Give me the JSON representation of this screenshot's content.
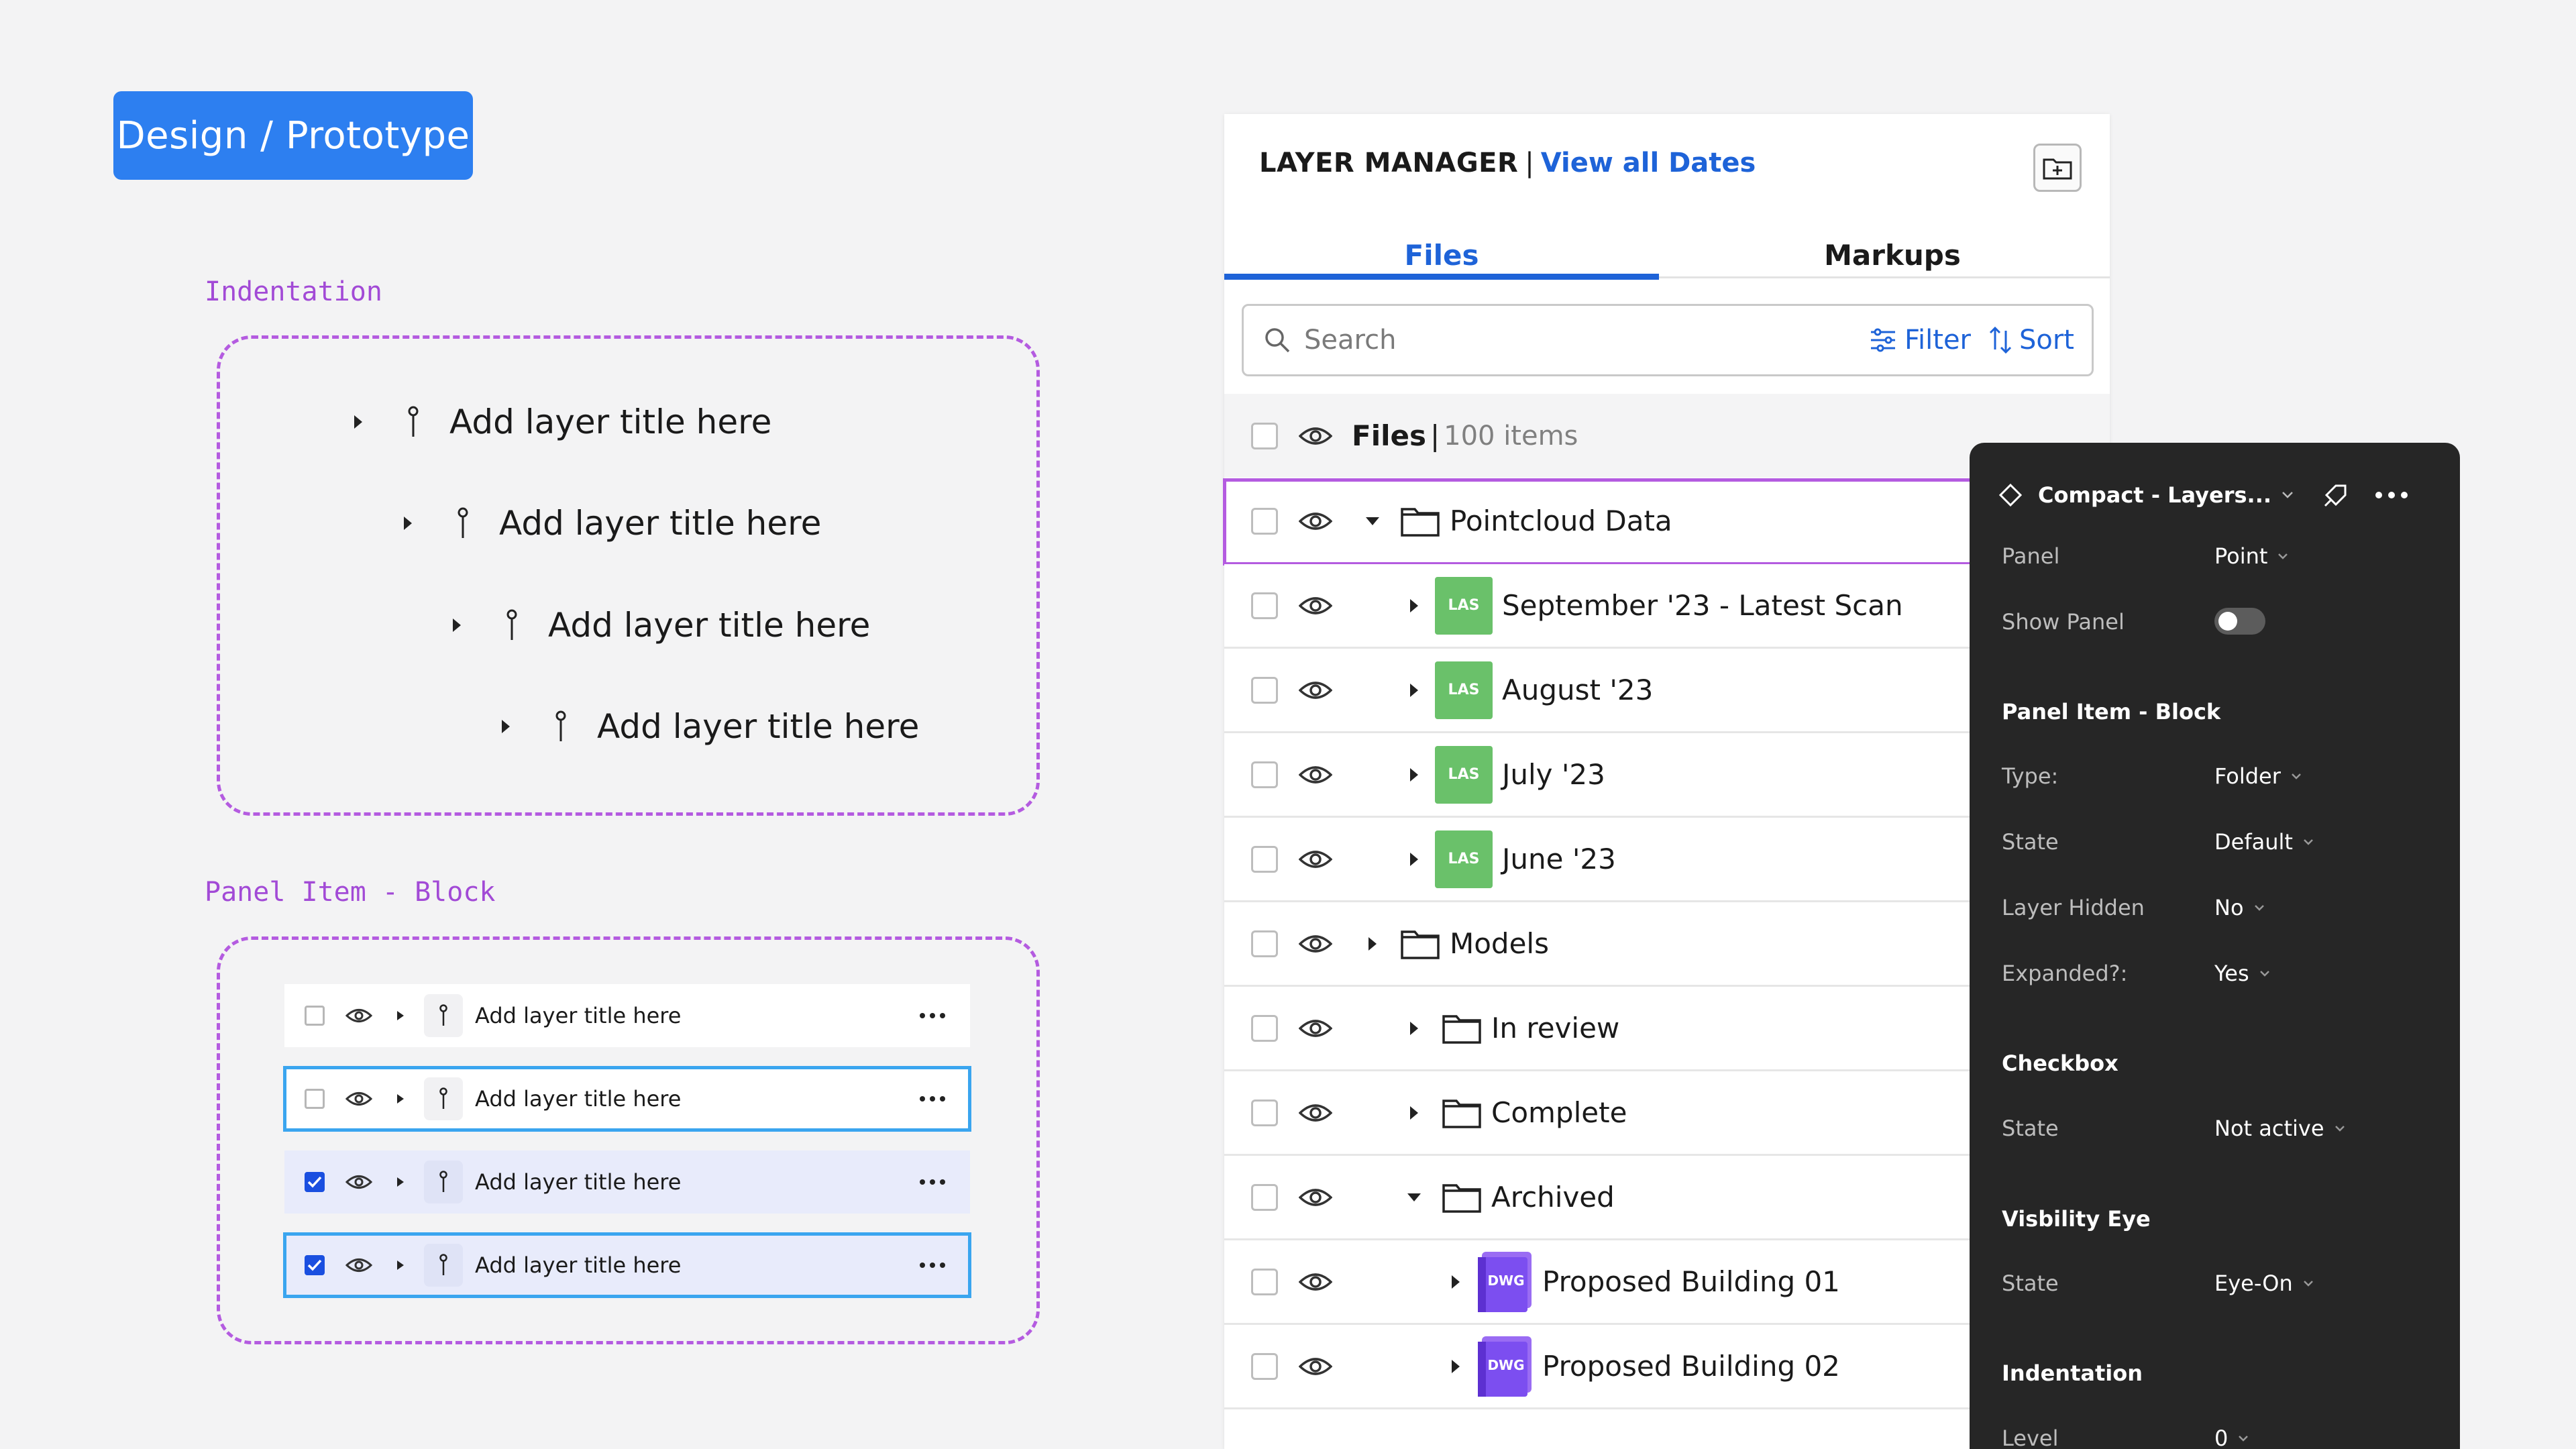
{
  "badge": {
    "label": "Design / Prototype"
  },
  "indentation": {
    "label": "Indentation",
    "rows": [
      {
        "title": "Add layer title here"
      },
      {
        "title": "Add layer title here"
      },
      {
        "title": "Add layer title here"
      },
      {
        "title": "Add layer title here"
      }
    ]
  },
  "panel_item_block": {
    "label": "Panel Item - Block",
    "rows": [
      {
        "title": "Add layer title here",
        "checked": false,
        "state": "default"
      },
      {
        "title": "Add layer title here",
        "checked": false,
        "state": "focus"
      },
      {
        "title": "Add layer title here",
        "checked": true,
        "state": "selected"
      },
      {
        "title": "Add layer title here",
        "checked": true,
        "state": "selected-focus"
      }
    ]
  },
  "layer_manager": {
    "title": "LAYER MANAGER",
    "separator": "|",
    "link": "View all Dates",
    "tabs": [
      "Files",
      "Markups"
    ],
    "active_tab": "Files",
    "search_placeholder": "Search",
    "filter_label": "Filter",
    "sort_label": "Sort",
    "files_label": "Files",
    "files_separator": "|",
    "files_count": "100 items",
    "rows": [
      {
        "title": "Pointcloud Data",
        "type": "folder",
        "level": 0,
        "expanded": true
      },
      {
        "title": "September '23 - Latest Scan",
        "type": "las",
        "level": 1,
        "expanded": false
      },
      {
        "title": "August '23",
        "type": "las",
        "level": 1,
        "expanded": false
      },
      {
        "title": "July '23",
        "type": "las",
        "level": 1,
        "expanded": false
      },
      {
        "title": "June '23",
        "type": "las",
        "level": 1,
        "expanded": false
      },
      {
        "title": "Models",
        "type": "folder",
        "level": 0,
        "expanded": false
      },
      {
        "title": "In review",
        "type": "folder",
        "level": 1,
        "expanded": false
      },
      {
        "title": "Complete",
        "type": "folder",
        "level": 1,
        "expanded": false
      },
      {
        "title": "Archived",
        "type": "folder",
        "level": 1,
        "expanded": true
      },
      {
        "title": "Proposed Building 01",
        "type": "dwg",
        "level": 2,
        "expanded": false
      },
      {
        "title": "Proposed Building 02",
        "type": "dwg",
        "level": 2,
        "expanded": false
      }
    ],
    "las_tag": "LAS",
    "dwg_tag": "DWG"
  },
  "props": {
    "component_name": "Compact - Layers...",
    "panel_label": "Panel",
    "panel_value": "Point",
    "show_panel_label": "Show Panel",
    "show_panel_on": false,
    "section_item": "Panel Item - Block",
    "type_label": "Type:",
    "type_value": "Folder",
    "state_label": "State",
    "state_value": "Default",
    "layer_hidden_label": "Layer Hidden",
    "layer_hidden_value": "No",
    "expanded_label": "Expanded?:",
    "expanded_value": "Yes",
    "section_checkbox": "Checkbox",
    "cb_state_label": "State",
    "cb_state_value": "Not active",
    "section_eye": "Visbility Eye",
    "eye_state_label": "State",
    "eye_state_value": "Eye-On",
    "section_indent": "Indentation",
    "level_label": "Level",
    "level_value": "0"
  },
  "colors": {
    "accent": "#1e63d8",
    "badge": "#2d7ff0",
    "dash": "#b45be0",
    "las": "#6ac16a",
    "dwg": "#8a5cf0",
    "panel_dark": "#262626"
  }
}
